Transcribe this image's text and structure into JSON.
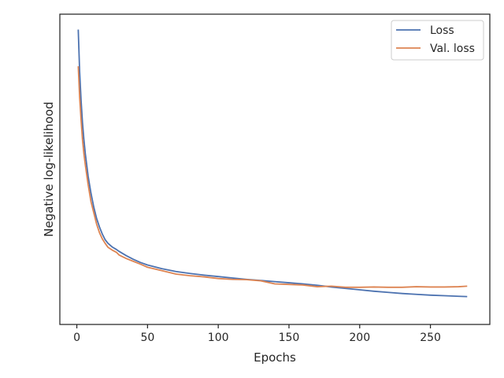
{
  "chart_data": {
    "type": "line",
    "title": "",
    "xlabel": "Epochs",
    "ylabel": "Negative log-likelihood",
    "xlim": [
      -12,
      292
    ],
    "ylim": [
      0,
      1
    ],
    "x_ticks": [
      0,
      50,
      100,
      150,
      200,
      250
    ],
    "y_ticks": [],
    "grid": false,
    "legend_position": "top-right",
    "colors": {
      "loss": "#4c72b0",
      "val_loss": "#dd8452"
    },
    "x": [
      1,
      2,
      3,
      4,
      5,
      6,
      8,
      10,
      12,
      14,
      16,
      18,
      20,
      22,
      25,
      28,
      30,
      35,
      40,
      45,
      50,
      60,
      70,
      80,
      90,
      100,
      110,
      120,
      130,
      140,
      150,
      160,
      170,
      180,
      190,
      200,
      210,
      220,
      230,
      240,
      250,
      260,
      270,
      276
    ],
    "series": [
      {
        "name": "Loss",
        "values": [
          0.99,
          0.84,
          0.74,
          0.66,
          0.6,
          0.55,
          0.47,
          0.41,
          0.36,
          0.32,
          0.29,
          0.265,
          0.245,
          0.232,
          0.219,
          0.21,
          0.203,
          0.188,
          0.175,
          0.164,
          0.155,
          0.142,
          0.132,
          0.125,
          0.119,
          0.114,
          0.109,
          0.104,
          0.1,
          0.096,
          0.092,
          0.088,
          0.083,
          0.077,
          0.072,
          0.067,
          0.062,
          0.058,
          0.054,
          0.051,
          0.048,
          0.046,
          0.044,
          0.043
        ]
      },
      {
        "name": "Val. loss",
        "values": [
          0.86,
          0.75,
          0.67,
          0.6,
          0.55,
          0.51,
          0.44,
          0.38,
          0.34,
          0.3,
          0.27,
          0.248,
          0.232,
          0.218,
          0.208,
          0.2,
          0.19,
          0.178,
          0.168,
          0.158,
          0.147,
          0.135,
          0.123,
          0.117,
          0.113,
          0.107,
          0.104,
          0.103,
          0.099,
          0.088,
          0.086,
          0.084,
          0.078,
          0.08,
          0.076,
          0.076,
          0.077,
          0.076,
          0.076,
          0.078,
          0.077,
          0.077,
          0.078,
          0.08
        ]
      }
    ]
  }
}
